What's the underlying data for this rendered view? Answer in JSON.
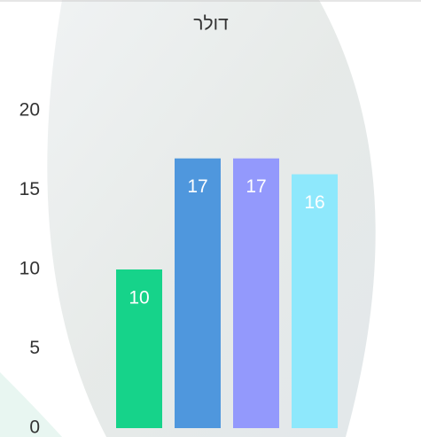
{
  "chart_data": {
    "type": "bar",
    "title": "דולר",
    "categories": [
      null,
      null,
      null,
      null
    ],
    "values": [
      10,
      17,
      17,
      16
    ],
    "colors": [
      "#16d38a",
      "#4f97dd",
      "#9399fc",
      "#8ee8fc"
    ],
    "ylim": [
      0,
      20
    ],
    "yticks": [
      0,
      5,
      10,
      15,
      20
    ],
    "grid": false
  }
}
